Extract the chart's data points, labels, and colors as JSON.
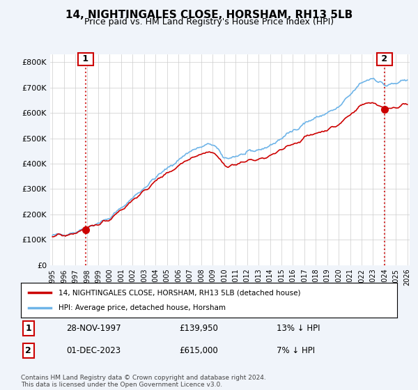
{
  "title": "14, NIGHTINGALES CLOSE, HORSHAM, RH13 5LB",
  "subtitle": "Price paid vs. HM Land Registry's House Price Index (HPI)",
  "ylabel": "",
  "xlabel": "",
  "ylim": [
    0,
    830000
  ],
  "yticks": [
    0,
    100000,
    200000,
    300000,
    400000,
    500000,
    600000,
    700000,
    800000
  ],
  "ytick_labels": [
    "£0",
    "£100K",
    "£200K",
    "£300K",
    "£400K",
    "£500K",
    "£600K",
    "£700K",
    "£800K"
  ],
  "hpi_color": "#6eb4e8",
  "price_color": "#cc0000",
  "sale1_date_idx": 2.9,
  "sale1_price": 139950,
  "sale1_label": "1",
  "sale2_price": 615000,
  "sale2_label": "2",
  "legend_line1": "14, NIGHTINGALES CLOSE, HORSHAM, RH13 5LB (detached house)",
  "legend_line2": "HPI: Average price, detached house, Horsham",
  "annotation1_date": "28-NOV-1997",
  "annotation1_price": "£139,950",
  "annotation1_rel": "13% ↓ HPI",
  "annotation2_date": "01-DEC-2023",
  "annotation2_price": "£615,000",
  "annotation2_rel": "7% ↓ HPI",
  "footnote": "Contains HM Land Registry data © Crown copyright and database right 2024.\nThis data is licensed under the Open Government Licence v3.0.",
  "background_color": "#f0f4fa",
  "plot_background": "#ffffff",
  "grid_color": "#cccccc",
  "title_fontsize": 11,
  "subtitle_fontsize": 9
}
